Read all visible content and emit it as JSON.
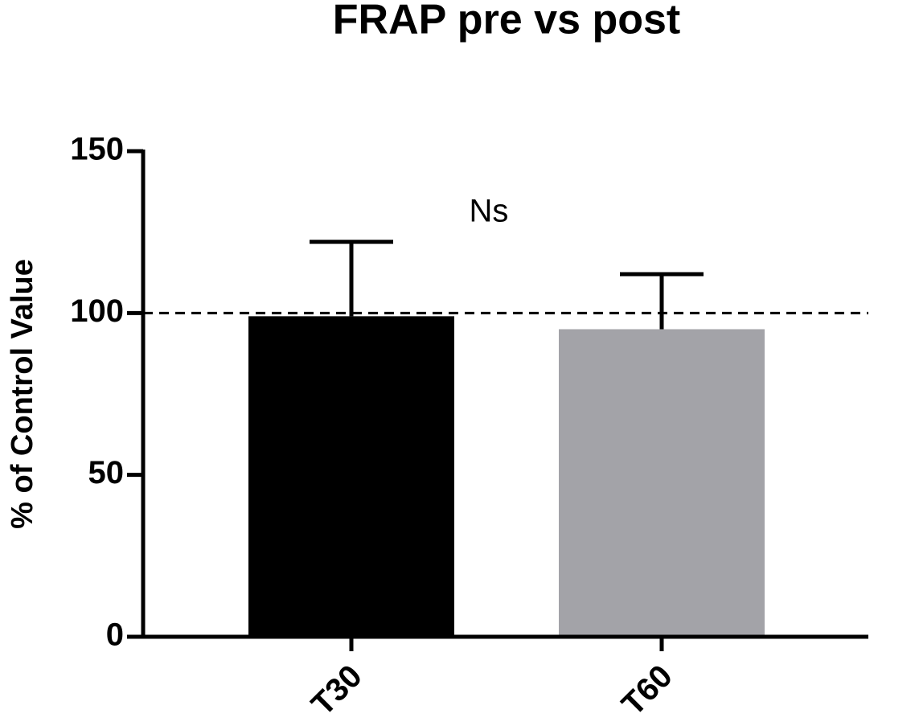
{
  "chart_data": {
    "type": "bar",
    "title": "FRAP pre vs post",
    "y_label": "% of Control Value",
    "categories": [
      "T30",
      "T60"
    ],
    "values": [
      99,
      95
    ],
    "errors": [
      23,
      17
    ],
    "colors": [
      "#000000",
      "#a3a3a8"
    ],
    "reference_line": 100,
    "annotation": "Ns",
    "ylim": [
      0,
      150
    ],
    "yticks": [
      0,
      50,
      100,
      150
    ],
    "grid": false
  }
}
